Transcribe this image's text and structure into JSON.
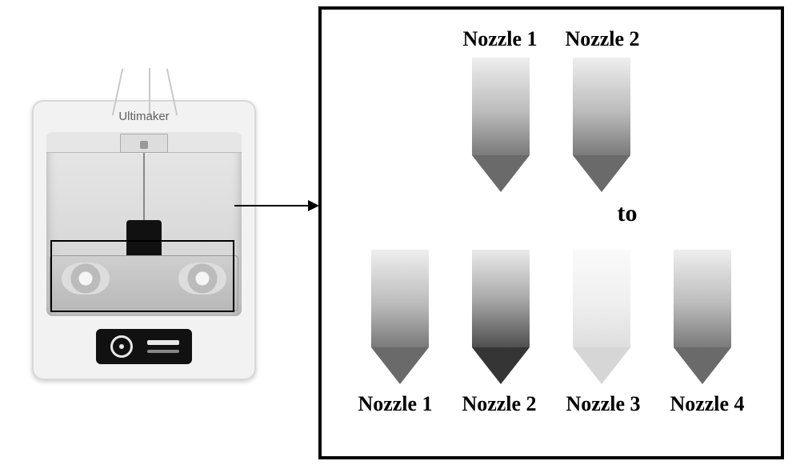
{
  "printer": {
    "brand": "Ultimaker",
    "body_color": "#f2f2f2",
    "cavity_color": "#d8d8d8",
    "panel_color": "#111111"
  },
  "diagram": {
    "panel_border_color": "#000000",
    "arrow_color": "#000000",
    "to_label": "to",
    "label_font_family": "Times New Roman, serif",
    "label_fontsize_pt": 20,
    "label_fontweight": "bold",
    "label_color": "#000000",
    "nozzle_gradients": {
      "mid": {
        "top": "#eeeeee",
        "bottom": "#7a7a7a",
        "tip": "#6a6a6a"
      },
      "dark": {
        "top": "#eaeaea",
        "bottom": "#4f4f4f",
        "tip": "#353535"
      },
      "light": {
        "top": "#fafafa",
        "bottom": "#dedede",
        "tip": "#d6d6d6"
      }
    },
    "top_row": [
      {
        "label": "Nozzle 1",
        "gradient": "mid"
      },
      {
        "label": "Nozzle 2",
        "gradient": "mid"
      }
    ],
    "bottom_row": [
      {
        "label": "Nozzle 1",
        "gradient": "mid"
      },
      {
        "label": "Nozzle 2",
        "gradient": "dark"
      },
      {
        "label": "Nozzle 3",
        "gradient": "light"
      },
      {
        "label": "Nozzle 4",
        "gradient": "mid"
      }
    ]
  }
}
